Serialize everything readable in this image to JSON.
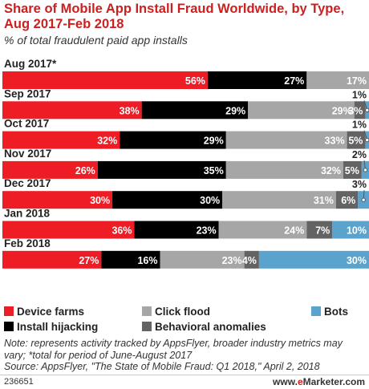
{
  "header": {
    "title": "Share of Mobile App Install Fraud Worldwide, by Type, Aug 2017-Feb 2018",
    "subtitle": "% of total fraudulent paid app installs"
  },
  "chart_data": {
    "type": "bar",
    "orientation": "horizontal",
    "stacked": true,
    "categories": [
      "Aug 2017*",
      "Sep 2017",
      "Oct 2017",
      "Nov 2017",
      "Dec 2017",
      "Jan 2018",
      "Feb 2018"
    ],
    "series": [
      {
        "name": "Device farms",
        "color": "#ee1c25",
        "values": [
          56,
          38,
          32,
          26,
          30,
          36,
          27
        ]
      },
      {
        "name": "Install hijacking",
        "color": "#000000",
        "values": [
          27,
          29,
          29,
          35,
          30,
          23,
          16
        ]
      },
      {
        "name": "Click flood",
        "color": "#a6a6a6",
        "values": [
          17,
          29,
          33,
          32,
          31,
          24,
          23
        ]
      },
      {
        "name": "Behavioral anomalies",
        "color": "#636363",
        "values": [
          0,
          3,
          5,
          5,
          6,
          7,
          4
        ]
      },
      {
        "name": "Bots",
        "color": "#5aa3cc",
        "values": [
          0,
          1,
          1,
          2,
          3,
          10,
          30
        ]
      }
    ],
    "labels": [
      [
        "56%",
        "27%",
        "17%",
        "",
        ""
      ],
      [
        "38%",
        "29%",
        "29%",
        "3%",
        "1%"
      ],
      [
        "32%",
        "29%",
        "33%",
        "5%",
        "1%"
      ],
      [
        "26%",
        "35%",
        "32%",
        "5%",
        "2%"
      ],
      [
        "30%",
        "30%",
        "31%",
        "6%",
        "3%"
      ],
      [
        "36%",
        "23%",
        "24%",
        "7%",
        "10%"
      ],
      [
        "27%",
        "16%",
        "23%",
        "4%",
        "30%"
      ]
    ],
    "callouts": [
      false,
      true,
      true,
      true,
      true,
      false,
      false
    ],
    "xlim": [
      0,
      100
    ],
    "grid": false,
    "legend_position": "bottom"
  },
  "note": "Note: represents activity tracked by AppsFlyer, broader industry metrics may vary; *total for period of June-August 2017",
  "source": "Source: AppsFlyer, \"The State of Mobile Fraud: Q1 2018,\" April 2, 2018",
  "footer": {
    "id": "236651",
    "brand_prefix": "www.",
    "brand_e": "e",
    "brand_rest": "Marketer.com"
  }
}
